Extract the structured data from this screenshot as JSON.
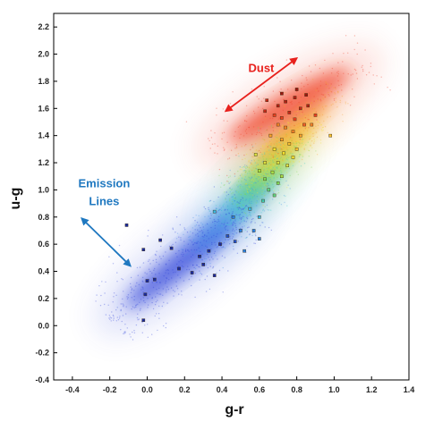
{
  "chart_data": {
    "type": "scatter",
    "title": "",
    "xlabel": "g-r",
    "ylabel": "u-g",
    "xlim": [
      -0.5,
      1.4
    ],
    "ylim": [
      -0.4,
      2.3
    ],
    "x_ticks": [
      "-0.4",
      "-0.2",
      "0.0",
      "0.2",
      "0.4",
      "0.6",
      "0.8",
      "1.0",
      "1.2",
      "1.4"
    ],
    "y_ticks": [
      "-0.4",
      "-0.2",
      "0.0",
      "0.2",
      "0.4",
      "0.6",
      "0.8",
      "1.0",
      "1.2",
      "1.4",
      "1.6",
      "1.8",
      "2.0",
      "2.2"
    ],
    "grid": false,
    "annotations": [
      {
        "id": "dust",
        "text": "Dust",
        "color": "#e8201c",
        "arrow_from": [
          0.42,
          1.58
        ],
        "arrow_to": [
          0.8,
          1.97
        ],
        "text_at": [
          0.61,
          1.87
        ]
      },
      {
        "id": "emission",
        "lines": [
          "Emission",
          "Lines"
        ],
        "color": "#1f78c0",
        "arrow_from": [
          -0.35,
          0.79
        ],
        "arrow_to": [
          -0.09,
          0.44
        ],
        "text_at": [
          -0.23,
          1.02
        ]
      }
    ],
    "density_bands": [
      {
        "name": "",
        "color": "#2b3fd9",
        "center": [
          0.18,
          0.46
        ],
        "length": 0.75,
        "width": 0.16,
        "angle_slope": 1.1
      },
      {
        "name": "",
        "color": "#3f8fe8",
        "center": [
          0.45,
          0.82
        ],
        "length": 0.55,
        "width": 0.14,
        "angle_slope": 1.3
      },
      {
        "name": "",
        "color": "#3fd0c8",
        "center": [
          0.58,
          1.02
        ],
        "length": 0.45,
        "width": 0.12,
        "angle_slope": 1.4
      },
      {
        "name": "",
        "color": "#7ed957",
        "center": [
          0.64,
          1.14
        ],
        "length": 0.42,
        "width": 0.11,
        "angle_slope": 1.4
      },
      {
        "name": "",
        "color": "#f2e030",
        "center": [
          0.72,
          1.28
        ],
        "length": 0.45,
        "width": 0.11,
        "angle_slope": 1.3
      },
      {
        "name": "",
        "color": "#f7a02a",
        "center": [
          0.78,
          1.44
        ],
        "length": 0.5,
        "width": 0.12,
        "angle_slope": 1.2
      },
      {
        "name": "",
        "color": "#ef3b24",
        "center": [
          0.76,
          1.62
        ],
        "length": 0.75,
        "width": 0.17,
        "angle_slope": 0.8
      }
    ],
    "points": [
      {
        "x": -0.11,
        "y": 0.74,
        "c": "#1a2a9c"
      },
      {
        "x": -0.02,
        "y": 0.56,
        "c": "#1a2a9c"
      },
      {
        "x": 0.07,
        "y": 0.63,
        "c": "#1a2a9c"
      },
      {
        "x": 0.13,
        "y": 0.57,
        "c": "#1a2a9c"
      },
      {
        "x": 0.0,
        "y": 0.33,
        "c": "#1a2a9c"
      },
      {
        "x": 0.04,
        "y": 0.34,
        "c": "#1a2a9c"
      },
      {
        "x": -0.01,
        "y": 0.23,
        "c": "#1a2a9c"
      },
      {
        "x": -0.02,
        "y": 0.04,
        "c": "#1a2a9c"
      },
      {
        "x": 0.17,
        "y": 0.42,
        "c": "#1a2a9c"
      },
      {
        "x": 0.24,
        "y": 0.39,
        "c": "#1a2a9c"
      },
      {
        "x": 0.3,
        "y": 0.45,
        "c": "#1a2a9c"
      },
      {
        "x": 0.36,
        "y": 0.37,
        "c": "#1a2a9c"
      },
      {
        "x": 0.28,
        "y": 0.51,
        "c": "#1a2a9c"
      },
      {
        "x": 0.33,
        "y": 0.55,
        "c": "#1a2a9c"
      },
      {
        "x": 0.39,
        "y": 0.6,
        "c": "#1a2a9c"
      },
      {
        "x": 0.43,
        "y": 0.66,
        "c": "#2050c8"
      },
      {
        "x": 0.47,
        "y": 0.62,
        "c": "#2050c8"
      },
      {
        "x": 0.5,
        "y": 0.7,
        "c": "#2a80e0"
      },
      {
        "x": 0.52,
        "y": 0.55,
        "c": "#2a80e0"
      },
      {
        "x": 0.57,
        "y": 0.7,
        "c": "#2a80e0"
      },
      {
        "x": 0.6,
        "y": 0.64,
        "c": "#2a80e0"
      },
      {
        "x": 0.46,
        "y": 0.8,
        "c": "#2a80e0"
      },
      {
        "x": 0.55,
        "y": 0.86,
        "c": "#3ab8e0"
      },
      {
        "x": 0.6,
        "y": 0.8,
        "c": "#3ab8e0"
      },
      {
        "x": 0.36,
        "y": 0.84,
        "c": "#3ab8e0"
      },
      {
        "x": 0.62,
        "y": 0.92,
        "c": "#40c8b0"
      },
      {
        "x": 0.65,
        "y": 1.0,
        "c": "#60d080"
      },
      {
        "x": 0.68,
        "y": 0.96,
        "c": "#60d080"
      },
      {
        "x": 0.7,
        "y": 1.05,
        "c": "#7ed957"
      },
      {
        "x": 0.63,
        "y": 1.08,
        "c": "#7ed957"
      },
      {
        "x": 0.72,
        "y": 1.1,
        "c": "#a8e048"
      },
      {
        "x": 0.67,
        "y": 1.13,
        "c": "#a8e048"
      },
      {
        "x": 0.75,
        "y": 1.18,
        "c": "#d8e040"
      },
      {
        "x": 0.7,
        "y": 1.2,
        "c": "#d8e040"
      },
      {
        "x": 0.63,
        "y": 1.2,
        "c": "#d8e040"
      },
      {
        "x": 0.78,
        "y": 1.24,
        "c": "#f2e030"
      },
      {
        "x": 0.73,
        "y": 1.27,
        "c": "#f2e030"
      },
      {
        "x": 0.68,
        "y": 1.3,
        "c": "#f2e030"
      },
      {
        "x": 0.8,
        "y": 1.3,
        "c": "#f7c030"
      },
      {
        "x": 0.76,
        "y": 1.34,
        "c": "#f7c030"
      },
      {
        "x": 0.72,
        "y": 1.37,
        "c": "#f7a02a"
      },
      {
        "x": 0.66,
        "y": 1.4,
        "c": "#f7a02a"
      },
      {
        "x": 0.82,
        "y": 1.4,
        "c": "#f7a02a"
      },
      {
        "x": 0.78,
        "y": 1.43,
        "c": "#f08028"
      },
      {
        "x": 0.74,
        "y": 1.46,
        "c": "#f08028"
      },
      {
        "x": 0.7,
        "y": 1.48,
        "c": "#f08028"
      },
      {
        "x": 0.84,
        "y": 1.48,
        "c": "#f06028"
      },
      {
        "x": 0.79,
        "y": 1.52,
        "c": "#e84020"
      },
      {
        "x": 0.72,
        "y": 1.53,
        "c": "#e84020"
      },
      {
        "x": 0.68,
        "y": 1.55,
        "c": "#e84020"
      },
      {
        "x": 0.63,
        "y": 1.58,
        "c": "#c42818"
      },
      {
        "x": 0.76,
        "y": 1.57,
        "c": "#c42818"
      },
      {
        "x": 0.82,
        "y": 1.6,
        "c": "#c42818"
      },
      {
        "x": 0.7,
        "y": 1.62,
        "c": "#b02014"
      },
      {
        "x": 0.74,
        "y": 1.65,
        "c": "#b02014"
      },
      {
        "x": 0.79,
        "y": 1.68,
        "c": "#b02014"
      },
      {
        "x": 0.85,
        "y": 1.7,
        "c": "#9a1810"
      },
      {
        "x": 0.72,
        "y": 1.71,
        "c": "#9a1810"
      },
      {
        "x": 0.8,
        "y": 1.74,
        "c": "#9a1810"
      },
      {
        "x": 0.86,
        "y": 1.62,
        "c": "#b02014"
      },
      {
        "x": 0.9,
        "y": 1.55,
        "c": "#e84020"
      },
      {
        "x": 0.88,
        "y": 1.48,
        "c": "#f08028"
      },
      {
        "x": 0.98,
        "y": 1.4,
        "c": "#f7c030"
      },
      {
        "x": 0.64,
        "y": 1.66,
        "c": "#c42818"
      },
      {
        "x": 0.58,
        "y": 1.26,
        "c": "#d8e040"
      },
      {
        "x": 0.6,
        "y": 1.14,
        "c": "#a8e048"
      }
    ]
  }
}
